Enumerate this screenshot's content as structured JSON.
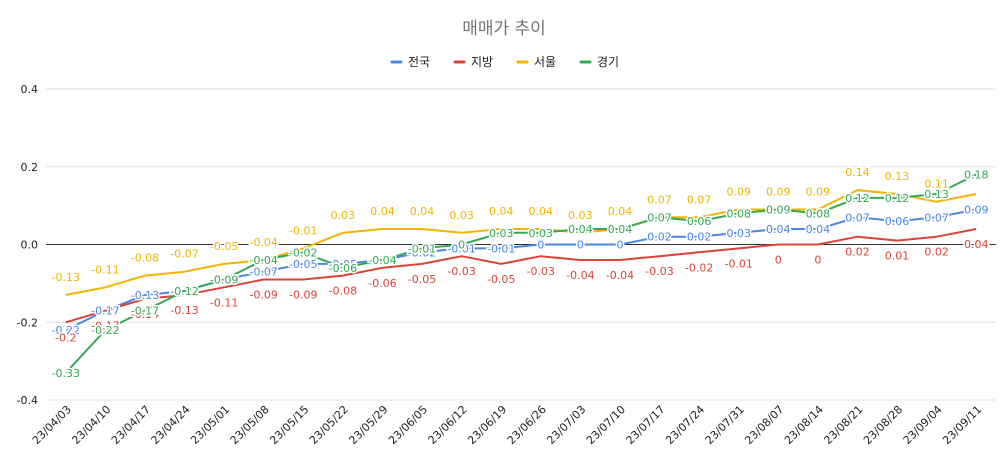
{
  "chart_data": {
    "type": "line",
    "title": "매매가 추이",
    "xlabel": "",
    "ylabel": "",
    "ylim": [
      -0.4,
      0.4
    ],
    "yticks": [
      "0.4",
      "0.2",
      "0.0",
      "-0.2",
      "-0.4"
    ],
    "ytick_values": [
      0.4,
      0.2,
      0.0,
      -0.2,
      -0.4
    ],
    "legend_position": "top",
    "grid": true,
    "categories": [
      "23/04/03",
      "23/04/10",
      "23/04/17",
      "23/04/24",
      "23/05/01",
      "23/05/08",
      "23/05/15",
      "23/05/22",
      "23/05/29",
      "23/06/05",
      "23/06/12",
      "23/06/19",
      "23/06/26",
      "23/07/03",
      "23/07/10",
      "23/07/17",
      "23/07/24",
      "23/07/31",
      "23/08/07",
      "23/08/14",
      "23/08/21",
      "23/08/28",
      "23/09/04",
      "23/09/11"
    ],
    "series": [
      {
        "name": "전국",
        "color": "#4a86e8",
        "values": [
          -0.22,
          -0.17,
          -0.13,
          -0.12,
          -0.09,
          -0.07,
          -0.05,
          -0.05,
          -0.04,
          -0.02,
          -0.01,
          -0.01,
          0,
          0,
          0,
          0.02,
          0.02,
          0.03,
          0.04,
          0.04,
          0.07,
          0.06,
          0.07,
          0.09
        ],
        "labels": [
          "-0.22",
          "-0.17",
          "-0.13",
          "-0.12",
          "-0.09",
          "-0.07",
          "-0.05",
          "-0.05",
          "-0.04",
          "-0.02",
          "-0.01",
          "-0.01",
          "0",
          "0",
          "0",
          "0.02",
          "0.02",
          "0.03",
          "0.04",
          "0.04",
          "0.07",
          "0.06",
          "0.07",
          "0.09"
        ]
      },
      {
        "name": "지방",
        "color": "#db4437",
        "values": [
          -0.2,
          -0.17,
          -0.14,
          -0.13,
          -0.11,
          -0.09,
          -0.09,
          -0.08,
          -0.06,
          -0.05,
          -0.03,
          -0.05,
          -0.03,
          -0.04,
          -0.04,
          -0.03,
          -0.02,
          -0.01,
          0,
          0,
          0.02,
          0.01,
          0.02,
          0.04
        ],
        "labels": [
          "-0.2",
          "-0.17",
          "-0.14",
          "-0.13",
          "-0.11",
          "-0.09",
          "-0.09",
          "-0.08",
          "-0.06",
          "-0.05",
          "-0.03",
          "-0.05",
          "-0.03",
          "-0.04",
          "-0.04",
          "-0.03",
          "-0.02",
          "-0.01",
          "0",
          "0",
          "0.02",
          "0.01",
          "0.02",
          "0.04"
        ]
      },
      {
        "name": "서울",
        "color": "#f4b400",
        "values": [
          -0.13,
          -0.11,
          -0.08,
          -0.07,
          -0.05,
          -0.04,
          -0.01,
          0.03,
          0.04,
          0.04,
          0.03,
          0.04,
          0.04,
          0.03,
          0.04,
          0.07,
          0.07,
          0.09,
          0.09,
          0.09,
          0.14,
          0.13,
          0.11,
          0.13
        ],
        "labels": [
          "-0.13",
          "-0.11",
          "-0.08",
          "-0.07",
          "-0.05",
          "-0.04",
          "-0.01",
          "0.03",
          "0.04",
          "0.04",
          "0.03",
          "0.04",
          "0.04",
          "0.03",
          "0.04",
          "0.07",
          "0.07",
          "0.09",
          "0.09",
          "0.09",
          "0.14",
          "0.13",
          "0.11",
          ""
        ]
      },
      {
        "name": "경기",
        "color": "#34a853",
        "values": [
          -0.33,
          -0.22,
          -0.17,
          -0.12,
          -0.09,
          -0.04,
          -0.02,
          -0.06,
          -0.04,
          -0.01,
          0,
          0.03,
          0.03,
          0.04,
          0.04,
          0.07,
          0.06,
          0.08,
          0.09,
          0.08,
          0.12,
          0.12,
          0.13,
          0.18
        ],
        "labels": [
          "-0.33",
          "-0.22",
          "-0.17",
          "-0.12",
          "-0.09",
          "-0.04",
          "-0.02",
          "-0.06",
          "-0.04",
          "-0.01",
          "0",
          "0.03",
          "0.03",
          "0.04",
          "0.04",
          "0.07",
          "0.06",
          "0.08",
          "0.09",
          "0.08",
          "0.12",
          "0.12",
          "0.13",
          "0.18"
        ]
      }
    ]
  }
}
